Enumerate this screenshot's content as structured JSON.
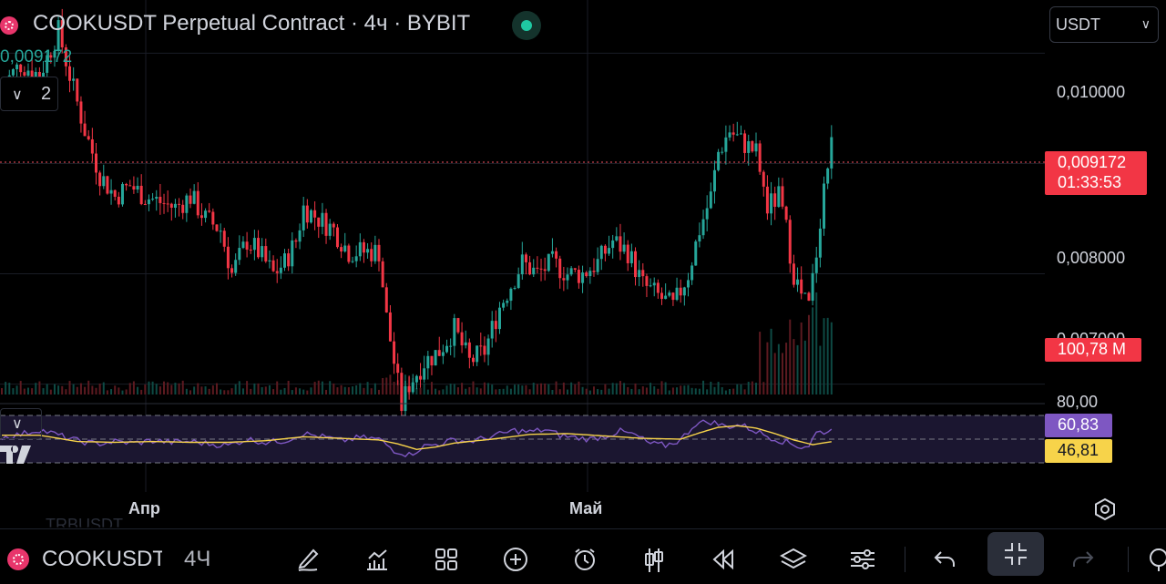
{
  "header": {
    "title": "COOKUSDT Perpetual Contract · 4ч · BYBIT",
    "current_price": "0,009172",
    "indicator_count": "2",
    "currency": "USDT"
  },
  "price_axis": {
    "labels": [
      "0,010000",
      "0,008000"
    ],
    "partial_label": "0,007000",
    "last_price": "0,009172",
    "countdown": "01:33:53",
    "volume": "100,78 M"
  },
  "rsi": {
    "upper_level": "80,00",
    "rsi_value": "60,83",
    "ma_value": "46,81",
    "colors": {
      "rsi": "#7e57c2",
      "ma": "#f7d34a",
      "band": "#1b1630"
    }
  },
  "time_axis": {
    "labels": [
      "Апр",
      "Май"
    ]
  },
  "ghost_symbol": "TRBUSDT",
  "bottom_bar": {
    "symbol": "COOKUSDT",
    "interval": "4Ч",
    "tools": [
      "pencil-icon",
      "indicators-icon",
      "layout-grid-icon",
      "add-icon",
      "alert-clock-icon",
      "candles-icon",
      "replay-icon",
      "layers-icon",
      "settings-sliders-icon",
      "undo-icon",
      "collapse-icon",
      "redo-icon"
    ]
  },
  "colors": {
    "up": "#26a69a",
    "down": "#f23645",
    "price_line": "#f7525f",
    "text": "#d1d4dc"
  },
  "chart_data": {
    "type": "candlestick",
    "symbol": "COOKUSDT",
    "ylim": [
      0.0066,
      0.0104
    ],
    "y_ticks": [
      0.01,
      0.008
    ],
    "last_price": 0.009172,
    "x_labels": [
      "Апр",
      "Май"
    ],
    "rsi_ylim": [
      20,
      80
    ],
    "rsi_levels": [
      80,
      50,
      20
    ],
    "close_path": [
      [
        0,
        0.0097
      ],
      [
        5,
        0.0099
      ],
      [
        10,
        0.0098
      ],
      [
        15,
        0.0102
      ],
      [
        18,
        0.0098
      ],
      [
        22,
        0.0093
      ],
      [
        26,
        0.0089
      ],
      [
        30,
        0.0087
      ],
      [
        34,
        0.0088
      ],
      [
        38,
        0.0087
      ],
      [
        42,
        0.00865
      ],
      [
        46,
        0.0086
      ],
      [
        50,
        0.0087
      ],
      [
        54,
        0.0085
      ],
      [
        58,
        0.0084
      ],
      [
        61,
        0.008
      ],
      [
        65,
        0.0083
      ],
      [
        68,
        0.0082
      ],
      [
        72,
        0.008
      ],
      [
        75,
        0.0081
      ],
      [
        78,
        0.0083
      ],
      [
        80,
        0.0086
      ],
      [
        84,
        0.0085
      ],
      [
        88,
        0.0084
      ],
      [
        92,
        0.0082
      ],
      [
        95,
        0.0082
      ],
      [
        100,
        0.0082
      ],
      [
        102,
        0.0076
      ],
      [
        104,
        0.0072
      ],
      [
        106,
        0.0068
      ],
      [
        108,
        0.007
      ],
      [
        112,
        0.0072
      ],
      [
        116,
        0.0073
      ],
      [
        120,
        0.0075
      ],
      [
        124,
        0.0072
      ],
      [
        128,
        0.0073
      ],
      [
        132,
        0.0077
      ],
      [
        135,
        0.0079
      ],
      [
        138,
        0.0081
      ],
      [
        142,
        0.008
      ],
      [
        146,
        0.0081
      ],
      [
        150,
        0.008
      ],
      [
        154,
        0.008
      ],
      [
        158,
        0.0081
      ],
      [
        162,
        0.0083
      ],
      [
        166,
        0.0082
      ],
      [
        170,
        0.0079
      ],
      [
        174,
        0.0078
      ],
      [
        178,
        0.0077
      ],
      [
        182,
        0.008
      ],
      [
        185,
        0.0084
      ],
      [
        188,
        0.0087
      ],
      [
        190,
        0.0091
      ],
      [
        193,
        0.0093
      ],
      [
        196,
        0.0092
      ],
      [
        200,
        0.0091
      ],
      [
        203,
        0.0086
      ],
      [
        206,
        0.0087
      ],
      [
        208,
        0.0084
      ],
      [
        210,
        0.008
      ],
      [
        212,
        0.0078
      ],
      [
        214,
        0.0077
      ],
      [
        216,
        0.0082
      ],
      [
        218,
        0.0088
      ],
      [
        220,
        0.00917
      ]
    ],
    "volume_range": [
      0,
      100.78
    ],
    "rsi_path": [
      [
        0,
        52
      ],
      [
        5,
        56
      ],
      [
        10,
        62
      ],
      [
        15,
        55
      ],
      [
        20,
        48
      ],
      [
        25,
        44
      ],
      [
        30,
        47
      ],
      [
        35,
        45
      ],
      [
        40,
        48
      ],
      [
        45,
        46
      ],
      [
        50,
        47
      ],
      [
        55,
        44
      ],
      [
        60,
        42
      ],
      [
        65,
        50
      ],
      [
        70,
        46
      ],
      [
        75,
        48
      ],
      [
        80,
        57
      ],
      [
        85,
        53
      ],
      [
        90,
        48
      ],
      [
        95,
        52
      ],
      [
        100,
        50
      ],
      [
        104,
        36
      ],
      [
        108,
        30
      ],
      [
        112,
        41
      ],
      [
        116,
        44
      ],
      [
        120,
        49
      ],
      [
        124,
        47
      ],
      [
        128,
        51
      ],
      [
        132,
        56
      ],
      [
        136,
        61
      ],
      [
        140,
        59
      ],
      [
        144,
        62
      ],
      [
        148,
        55
      ],
      [
        152,
        52
      ],
      [
        156,
        50
      ],
      [
        160,
        54
      ],
      [
        164,
        60
      ],
      [
        168,
        55
      ],
      [
        172,
        44
      ],
      [
        176,
        42
      ],
      [
        180,
        49
      ],
      [
        184,
        70
      ],
      [
        188,
        72
      ],
      [
        192,
        66
      ],
      [
        196,
        68
      ],
      [
        200,
        60
      ],
      [
        204,
        52
      ],
      [
        208,
        46
      ],
      [
        212,
        40
      ],
      [
        214,
        42
      ],
      [
        216,
        58
      ],
      [
        220,
        60.83
      ]
    ],
    "rsi_ma_path": [
      [
        0,
        55
      ],
      [
        10,
        55
      ],
      [
        20,
        47
      ],
      [
        30,
        46
      ],
      [
        40,
        47
      ],
      [
        50,
        46
      ],
      [
        60,
        46
      ],
      [
        70,
        48
      ],
      [
        80,
        53
      ],
      [
        90,
        51
      ],
      [
        100,
        49
      ],
      [
        105,
        44
      ],
      [
        110,
        37
      ],
      [
        115,
        40
      ],
      [
        120,
        45
      ],
      [
        130,
        50
      ],
      [
        140,
        56
      ],
      [
        150,
        57
      ],
      [
        160,
        54
      ],
      [
        170,
        51
      ],
      [
        180,
        50
      ],
      [
        185,
        58
      ],
      [
        190,
        65
      ],
      [
        195,
        67
      ],
      [
        200,
        64
      ],
      [
        205,
        57
      ],
      [
        210,
        49
      ],
      [
        215,
        43
      ],
      [
        220,
        46.81
      ]
    ]
  }
}
